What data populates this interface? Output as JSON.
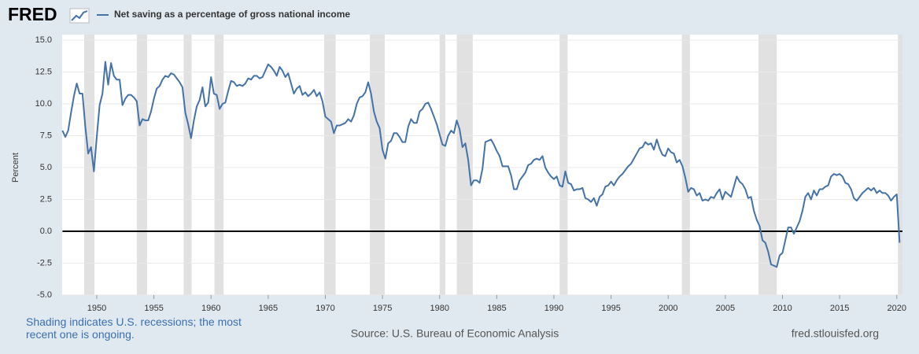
{
  "header": {
    "logo": "FRED"
  },
  "chart_data": {
    "type": "line",
    "y_label": "Percent",
    "xlim": [
      1947,
      2020.5
    ],
    "xticks": [
      1950,
      1955,
      1960,
      1965,
      1970,
      1975,
      1980,
      1985,
      1990,
      1995,
      2000,
      2005,
      2010,
      2015,
      2020
    ],
    "ylim": [
      -5,
      15
    ],
    "yticks": [
      {
        "value": -5,
        "label": "-5.0"
      },
      -2.5,
      {
        "value": 0,
        "label": "0.0"
      },
      2.5,
      {
        "value": 5,
        "label": "5.0"
      },
      7.5,
      {
        "value": 10,
        "label": "10.0"
      },
      12.5,
      {
        "value": 15,
        "label": "15.0"
      }
    ],
    "grid": true,
    "recession_color": "#e1e1e1",
    "recessions": [
      [
        1948.9,
        1949.8
      ],
      [
        1953.5,
        1954.4
      ],
      [
        1957.6,
        1958.3
      ],
      [
        1960.3,
        1961.1
      ],
      [
        1969.9,
        1970.9
      ],
      [
        1973.9,
        1975.2
      ],
      [
        1980.0,
        1980.5
      ],
      [
        1981.5,
        1982.9
      ],
      [
        1990.5,
        1991.2
      ],
      [
        2001.2,
        2001.9
      ],
      [
        2007.9,
        2009.5
      ],
      [
        2020.1,
        2020.5
      ]
    ],
    "x": [
      1947,
      1947.25,
      1947.5,
      1947.75,
      1948,
      1948.25,
      1948.5,
      1948.75,
      1949,
      1949.25,
      1949.5,
      1949.75,
      1950,
      1950.25,
      1950.5,
      1950.75,
      1951,
      1951.25,
      1951.5,
      1951.75,
      1952,
      1952.25,
      1952.5,
      1952.75,
      1953,
      1953.25,
      1953.5,
      1953.75,
      1954,
      1954.25,
      1954.5,
      1954.75,
      1955,
      1955.25,
      1955.5,
      1955.75,
      1956,
      1956.25,
      1956.5,
      1956.75,
      1957,
      1957.25,
      1957.5,
      1957.75,
      1958,
      1958.25,
      1958.5,
      1958.75,
      1959,
      1959.25,
      1959.5,
      1959.75,
      1960,
      1960.25,
      1960.5,
      1960.75,
      1961,
      1961.25,
      1961.5,
      1961.75,
      1962,
      1962.25,
      1962.5,
      1962.75,
      1963,
      1963.25,
      1963.5,
      1963.75,
      1964,
      1964.25,
      1964.5,
      1964.75,
      1965,
      1965.25,
      1965.5,
      1965.75,
      1966,
      1966.25,
      1966.5,
      1966.75,
      1967,
      1967.25,
      1967.5,
      1967.75,
      1968,
      1968.25,
      1968.5,
      1968.75,
      1969,
      1969.25,
      1969.5,
      1969.75,
      1970,
      1970.25,
      1970.5,
      1970.75,
      1971,
      1971.25,
      1971.5,
      1971.75,
      1972,
      1972.25,
      1972.5,
      1972.75,
      1973,
      1973.25,
      1973.5,
      1973.75,
      1974,
      1974.25,
      1974.5,
      1974.75,
      1975,
      1975.25,
      1975.5,
      1975.75,
      1976,
      1976.25,
      1976.5,
      1976.75,
      1977,
      1977.25,
      1977.5,
      1977.75,
      1978,
      1978.25,
      1978.5,
      1978.75,
      1979,
      1979.25,
      1979.5,
      1979.75,
      1980,
      1980.25,
      1980.5,
      1980.75,
      1981,
      1981.25,
      1981.5,
      1981.75,
      1982,
      1982.25,
      1982.5,
      1982.75,
      1983,
      1983.25,
      1983.5,
      1983.75,
      1984,
      1984.25,
      1984.5,
      1984.75,
      1985,
      1985.25,
      1985.5,
      1985.75,
      1986,
      1986.25,
      1986.5,
      1986.75,
      1987,
      1987.25,
      1987.5,
      1987.75,
      1988,
      1988.25,
      1988.5,
      1988.75,
      1989,
      1989.25,
      1989.5,
      1989.75,
      1990,
      1990.25,
      1990.5,
      1990.75,
      1991,
      1991.25,
      1991.5,
      1991.75,
      1992,
      1992.25,
      1992.5,
      1992.75,
      1993,
      1993.25,
      1993.5,
      1993.75,
      1994,
      1994.25,
      1994.5,
      1994.75,
      1995,
      1995.25,
      1995.5,
      1995.75,
      1996,
      1996.25,
      1996.5,
      1996.75,
      1997,
      1997.25,
      1997.5,
      1997.75,
      1998,
      1998.25,
      1998.5,
      1998.75,
      1999,
      1999.25,
      1999.5,
      1999.75,
      2000,
      2000.25,
      2000.5,
      2000.75,
      2001,
      2001.25,
      2001.5,
      2001.75,
      2002,
      2002.25,
      2002.5,
      2002.75,
      2003,
      2003.25,
      2003.5,
      2003.75,
      2004,
      2004.25,
      2004.5,
      2004.75,
      2005,
      2005.25,
      2005.5,
      2005.75,
      2006,
      2006.25,
      2006.5,
      2006.75,
      2007,
      2007.25,
      2007.5,
      2007.75,
      2008,
      2008.25,
      2008.5,
      2008.75,
      2009,
      2009.25,
      2009.5,
      2009.75,
      2010,
      2010.25,
      2010.5,
      2010.75,
      2011,
      2011.25,
      2011.5,
      2011.75,
      2012,
      2012.25,
      2012.5,
      2012.75,
      2013,
      2013.25,
      2013.5,
      2013.75,
      2014,
      2014.25,
      2014.5,
      2014.75,
      2015,
      2015.25,
      2015.5,
      2015.75,
      2016,
      2016.25,
      2016.5,
      2016.75,
      2017,
      2017.25,
      2017.5,
      2017.75,
      2018,
      2018.25,
      2018.5,
      2018.75,
      2019,
      2019.25,
      2019.5,
      2019.75,
      2020,
      2020.25
    ],
    "series": [
      {
        "name": "Net saving as a percentage of gross national income",
        "color": "#4572a7",
        "values": [
          7.9,
          7.4,
          7.9,
          9.3,
          10.6,
          11.6,
          10.8,
          10.8,
          8.2,
          6.1,
          6.6,
          4.7,
          7.4,
          9.9,
          10.8,
          13.3,
          11.5,
          13.2,
          12.2,
          11.9,
          11.9,
          9.9,
          10.4,
          10.7,
          10.7,
          10.5,
          10.2,
          8.3,
          8.8,
          8.7,
          8.7,
          9.4,
          10.4,
          11.2,
          11.4,
          11.9,
          12.2,
          12.1,
          12.4,
          12.3,
          12.0,
          11.7,
          11.3,
          9.3,
          8.4,
          7.3,
          8.7,
          9.8,
          10.3,
          11.3,
          9.8,
          10.1,
          12.1,
          10.8,
          10.7,
          9.6,
          10.0,
          10.1,
          11.0,
          11.8,
          11.7,
          11.4,
          11.5,
          11.4,
          11.6,
          12.0,
          11.9,
          12.2,
          12.2,
          12.0,
          12.1,
          12.6,
          13.1,
          12.9,
          12.6,
          12.2,
          12.9,
          12.6,
          12.1,
          12.4,
          11.6,
          10.8,
          11.2,
          11.4,
          10.7,
          10.9,
          10.6,
          10.8,
          11.1,
          10.6,
          10.9,
          10.2,
          9.0,
          8.8,
          8.6,
          7.7,
          8.3,
          8.3,
          8.4,
          8.5,
          8.8,
          8.6,
          9.1,
          10.0,
          10.5,
          10.6,
          10.9,
          11.7,
          10.8,
          9.4,
          8.6,
          8.1,
          6.4,
          5.7,
          6.9,
          7.1,
          7.7,
          7.7,
          7.4,
          7.0,
          7.0,
          8.2,
          8.8,
          8.5,
          8.5,
          9.4,
          9.6,
          10.0,
          10.1,
          9.6,
          9.0,
          8.4,
          7.6,
          6.8,
          6.7,
          7.5,
          7.9,
          7.7,
          8.7,
          8.0,
          6.6,
          6.9,
          5.6,
          3.6,
          4.0,
          4.0,
          3.8,
          4.9,
          7.0,
          7.1,
          7.2,
          6.8,
          6.3,
          5.9,
          5.1,
          5.1,
          5.1,
          4.4,
          3.3,
          3.3,
          4.0,
          4.3,
          4.6,
          5.2,
          5.3,
          5.6,
          5.7,
          5.6,
          5.9,
          5.0,
          4.6,
          4.3,
          4.1,
          4.3,
          3.6,
          3.5,
          4.7,
          3.8,
          3.7,
          3.2,
          3.3,
          3.3,
          3.4,
          2.6,
          2.5,
          2.3,
          2.6,
          2.0,
          2.7,
          2.9,
          3.5,
          3.6,
          3.9,
          3.6,
          4.0,
          4.3,
          4.5,
          4.8,
          5.1,
          5.3,
          5.7,
          6.1,
          6.5,
          6.6,
          7.0,
          6.8,
          6.9,
          6.4,
          7.2,
          6.5,
          6.0,
          5.9,
          6.5,
          6.2,
          6.1,
          5.4,
          5.6,
          5.1,
          4.2,
          3.1,
          3.4,
          3.3,
          2.8,
          3.0,
          2.4,
          2.5,
          2.4,
          2.7,
          2.6,
          3.0,
          3.3,
          2.5,
          3.1,
          2.9,
          2.7,
          3.5,
          4.3,
          3.9,
          3.7,
          3.3,
          2.6,
          2.7,
          1.6,
          0.9,
          0.4,
          -0.7,
          -0.9,
          -1.6,
          -2.6,
          -2.7,
          -2.8,
          -1.9,
          -1.7,
          -0.7,
          0.3,
          0.3,
          -0.2,
          0.3,
          0.8,
          1.6,
          2.7,
          3.0,
          2.5,
          3.2,
          2.8,
          3.3,
          3.3,
          3.5,
          3.6,
          4.3,
          4.5,
          4.4,
          4.5,
          4.3,
          3.8,
          3.7,
          3.3,
          2.6,
          2.4,
          2.7,
          3.0,
          3.2,
          3.4,
          3.2,
          3.4,
          3.0,
          3.2,
          3.0,
          3.0,
          2.8,
          2.4,
          2.7,
          2.9,
          -0.9
        ]
      }
    ],
    "note": "Shading indicates U.S. recessions; the most recent one is ongoing.",
    "source": "Source: U.S. Bureau of Economic Analysis",
    "site": "fred.stlouisfed.org"
  }
}
